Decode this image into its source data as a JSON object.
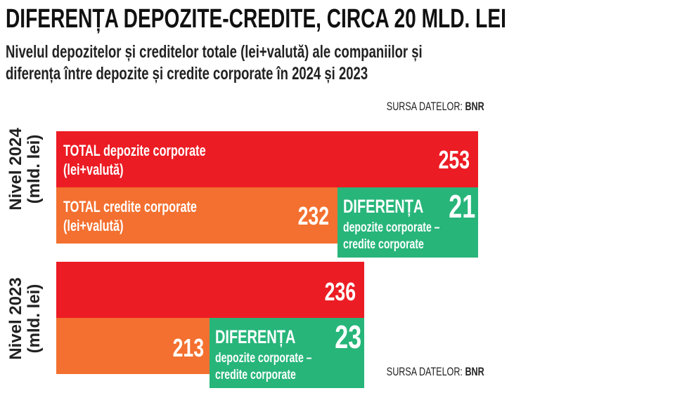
{
  "title": "DIFERENȚA DEPOZITE-CREDITE, CIRCA 20 MLD. LEI",
  "subtitle_line1": "Nivelul depozitelor și creditelor totale (lei+valută) ale companiilor și",
  "subtitle_line2": "diferența între depozite și credite corporate în 2024 și 2023",
  "source_label": "SURSA DATELOR:",
  "source_value": "BNR",
  "chart_data": {
    "type": "bar",
    "unit": "mld. lei",
    "groups": [
      {
        "label_line1": "Nivel 2024",
        "label_line2": "(mld. lei)",
        "deposits": 253,
        "credits": 232,
        "difference": 21
      },
      {
        "label_line1": "Nivel 2023",
        "label_line2": "(mld. lei)",
        "deposits": 236,
        "credits": 213,
        "difference": 23
      }
    ],
    "series": {
      "deposits": {
        "name_line1": "TOTAL depozite corporate",
        "name_line2": "(lei+valută)",
        "color": "#ec1c24"
      },
      "credits": {
        "name_line1": "TOTAL credite corporate",
        "name_line2": "(lei+valută)",
        "color": "#f37030"
      },
      "difference": {
        "name": "DIFERENȚA",
        "desc_line1": "depozite corporate –",
        "desc_line2": "credite corporate",
        "color": "#27b57a"
      }
    }
  }
}
